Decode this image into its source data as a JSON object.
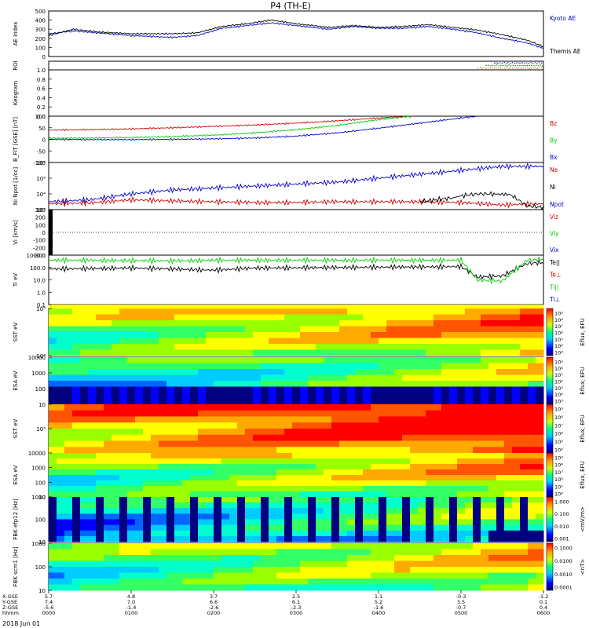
{
  "title": "P4 (TH-E)",
  "date_label": "2018 Jun 01",
  "colors": {
    "black": "#000000",
    "blue": "#0000cc",
    "red": "#cc0000",
    "green": "#00cc00",
    "spec_low": "#000080",
    "spec_high": "#ff0000"
  },
  "chart_data": [
    {
      "type": "line",
      "panel": "ae",
      "ylabel": "AE Index",
      "ylim": [
        0,
        500
      ],
      "yticks": [
        "0",
        "100",
        "200",
        "300",
        "400",
        "500"
      ],
      "series": [
        {
          "name": "Kyoto AE",
          "color": "#0000cc",
          "x": [
            0,
            0.3,
            0.6,
            1.0,
            1.5,
            1.8,
            2.1,
            2.4,
            2.7,
            3.0,
            3.4,
            3.7,
            4.0,
            4.3,
            4.6,
            4.9,
            5.2,
            5.5,
            5.8,
            6.0
          ],
          "values": [
            250,
            280,
            260,
            230,
            210,
            230,
            310,
            340,
            370,
            340,
            300,
            330,
            310,
            310,
            330,
            300,
            260,
            200,
            150,
            90
          ]
        },
        {
          "name": "Themis AE",
          "color": "#000000",
          "x": [
            0,
            0.3,
            0.6,
            1.0,
            1.5,
            1.8,
            2.1,
            2.4,
            2.7,
            3.0,
            3.4,
            3.7,
            4.0,
            4.3,
            4.6,
            4.9,
            5.2,
            5.5,
            5.8,
            6.0
          ],
          "values": [
            230,
            300,
            270,
            250,
            250,
            260,
            330,
            360,
            400,
            360,
            320,
            340,
            320,
            330,
            350,
            320,
            290,
            240,
            180,
            110
          ]
        }
      ]
    },
    {
      "type": "line",
      "panel": "roi",
      "ylabel": "ROI",
      "series": [
        {
          "name": "",
          "color": "#cc6600",
          "x": [
            5.2,
            6.0
          ],
          "values": [
            1,
            1
          ]
        },
        {
          "name": "",
          "color": "#006600",
          "x": [
            5.3,
            6.0
          ],
          "values": [
            1,
            1
          ]
        },
        {
          "name": "",
          "color": "#0000cc",
          "x": [
            5.4,
            6.0
          ],
          "values": [
            1,
            1
          ]
        }
      ]
    },
    {
      "type": "line",
      "panel": "keogram",
      "ylabel": "Keogram",
      "ylim": [
        0,
        1
      ],
      "yticks": [
        "0.0",
        "0.2",
        "0.4",
        "0.6",
        "0.8",
        "1.0"
      ],
      "series": []
    },
    {
      "type": "line",
      "panel": "bfield",
      "ylabel": "B_FIT [GSE] [nT]",
      "ylim": [
        -100,
        100
      ],
      "yticks": [
        "-100",
        "-50",
        "0",
        "50",
        "100"
      ],
      "series": [
        {
          "name": "Bz",
          "color": "#cc0000",
          "x": [
            0,
            0.5,
            1.0,
            1.5,
            2.0,
            2.5,
            3.0,
            3.5,
            4.0,
            4.4
          ],
          "values": [
            40,
            42,
            45,
            50,
            56,
            62,
            70,
            80,
            92,
            100
          ]
        },
        {
          "name": "By",
          "color": "#00cc00",
          "x": [
            0,
            0.5,
            1.0,
            1.5,
            2.0,
            2.5,
            3.0,
            3.5,
            4.0,
            4.4
          ],
          "values": [
            5,
            6,
            8,
            12,
            18,
            28,
            42,
            60,
            85,
            100
          ]
        },
        {
          "name": "Bx",
          "color": "#0000cc",
          "x": [
            0,
            0.5,
            1.0,
            1.5,
            2.0,
            2.5,
            3.0,
            3.5,
            4.0,
            4.5,
            5.0,
            5.2
          ],
          "values": [
            0,
            -1,
            -1,
            0,
            2,
            6,
            14,
            28,
            48,
            70,
            92,
            100
          ]
        }
      ]
    },
    {
      "type": "line",
      "panel": "density",
      "ylabel": "Ni Npot [1/cc]",
      "yscale": "log",
      "yticks": [
        "10²",
        "10⁴",
        "10⁶",
        "10⁸"
      ],
      "series": [
        {
          "name": "Ne",
          "color": "#cc0000",
          "x": [
            0,
            0.5,
            1.0,
            1.5,
            2.0,
            2.5,
            3.0,
            3.5,
            4.0,
            4.5,
            5.0,
            5.5,
            6.0
          ],
          "values": [
            -1.5,
            -1.3,
            -0.5,
            -0.8,
            -1,
            -1.2,
            -1.2,
            -1,
            -1,
            -1,
            -1.2,
            -1.8,
            -1.5
          ]
        },
        {
          "name": "Ni",
          "color": "#000000",
          "x": [
            4.5,
            4.7,
            4.9,
            5.0,
            5.2,
            5.4,
            5.6,
            5.8,
            6.0
          ],
          "values": [
            -1,
            -0.5,
            0,
            0.5,
            1,
            1,
            0.8,
            -2,
            -2.5
          ]
        },
        {
          "name": "Npot",
          "color": "#0000cc",
          "x": [
            0,
            0.5,
            1.0,
            1.5,
            2.0,
            2.5,
            3.0,
            3.5,
            4.0,
            4.5,
            5.0,
            5.5,
            6.0
          ],
          "values": [
            -1,
            -0.5,
            1,
            2,
            2.5,
            3,
            3.5,
            4,
            5,
            6,
            7,
            8,
            8
          ]
        }
      ]
    },
    {
      "type": "line",
      "panel": "velocity",
      "ylabel": "Vi [km/s]",
      "ylim": [
        -300,
        300
      ],
      "yticks": [
        "-300",
        "-200",
        "-100",
        "0",
        "100",
        "200",
        "300"
      ],
      "series": [
        {
          "name": "Viz",
          "color": "#cc0000",
          "x": [],
          "values": []
        },
        {
          "name": "Viy",
          "color": "#00cc00",
          "x": [],
          "values": []
        },
        {
          "name": "Vix",
          "color": "#0000cc",
          "x": [],
          "values": []
        }
      ]
    },
    {
      "type": "line",
      "panel": "temperature",
      "ylabel": "Ti eV",
      "yscale": "log",
      "yticks": [
        "0.1",
        "1.0",
        "10.0",
        "100.0",
        "1000.0"
      ],
      "series": [
        {
          "name": "Te||",
          "color": "#000000",
          "x": [
            0,
            0.5,
            1.0,
            1.5,
            2.0,
            2.5,
            3.0,
            3.5,
            4.0,
            4.5,
            5.0,
            5.2,
            5.5,
            5.8,
            6.0
          ],
          "values": [
            200,
            220,
            250,
            200,
            150,
            250,
            260,
            280,
            300,
            320,
            350,
            30,
            40,
            700,
            900
          ]
        },
        {
          "name": "Te⊥",
          "color": "#cc0000",
          "x": [],
          "values": []
        },
        {
          "name": "Ti||",
          "color": "#00cc00",
          "x": [
            0,
            0.5,
            1.0,
            1.5,
            2.0,
            2.5,
            3.0,
            3.5,
            4.0,
            4.5,
            5.0,
            5.2,
            5.5,
            5.8,
            6.0
          ],
          "values": [
            1500,
            1500,
            1400,
            1300,
            1500,
            1500,
            1500,
            1500,
            1500,
            1500,
            1500,
            15,
            12,
            1500,
            2000
          ]
        },
        {
          "name": "Ti⊥",
          "color": "#0000cc",
          "x": [],
          "values": []
        }
      ]
    },
    {
      "type": "heatmap",
      "panel": "sst1",
      "ylabel": "SST eV",
      "yticks": [
        "10⁴",
        "10⁵"
      ],
      "cbar_label": "Eflux, EFU",
      "cbar_ticks": [
        "10⁹",
        "10⁸",
        "10⁷",
        "10⁶",
        "10⁵",
        "10⁴",
        "10³"
      ]
    },
    {
      "type": "heatmap",
      "panel": "esa1",
      "ylabel": "ESA eV",
      "yticks": [
        "10",
        "100",
        "1000",
        "10000"
      ],
      "cbar_label": "Eflux, EFU",
      "cbar_ticks": [
        "10⁹",
        "10⁸",
        "10⁷",
        "10⁶",
        "10⁵",
        "10⁴",
        "10³"
      ]
    },
    {
      "type": "heatmap",
      "panel": "sst2",
      "ylabel": "SST eV",
      "yticks": [
        "10⁵"
      ],
      "cbar_label": "Eflux, EFU",
      "cbar_ticks": [
        "10⁹",
        "10⁸",
        "10⁷",
        "10⁶",
        "10⁵",
        "10⁴"
      ]
    },
    {
      "type": "heatmap",
      "panel": "esa2",
      "ylabel": "ESA eV",
      "yticks": [
        "10",
        "100",
        "1000",
        "10000"
      ],
      "cbar_label": "Eflux, EFU",
      "cbar_ticks": [
        "10⁹",
        "10⁸",
        "10⁷",
        "10⁶",
        "10⁵",
        "10⁴"
      ]
    },
    {
      "type": "heatmap",
      "panel": "fbk1",
      "ylabel": "FBK efp12 [Hz]",
      "yticks": [
        "10",
        "100",
        "1000"
      ],
      "cbar_label": "<mV/m>",
      "cbar_ticks": [
        "1.000",
        "0.100",
        "0.010",
        "0.001"
      ]
    },
    {
      "type": "heatmap",
      "panel": "fbk2",
      "ylabel": "FBK scm1 [Hz]",
      "yticks": [
        "10",
        "100",
        "1000"
      ],
      "cbar_label": "<nT>",
      "cbar_ticks": [
        "0.1000",
        "0.0100",
        "0.0010",
        "0.0001"
      ]
    }
  ],
  "xaxis": {
    "row_labels": [
      "X-GSE",
      "Y-GSE",
      "Z-GSE",
      "hhmm"
    ],
    "ticks": [
      {
        "x": "5.7",
        "y": "7.4",
        "z": "-5.6",
        "time": "0000"
      },
      {
        "x": "4.8",
        "y": "7.0",
        "z": "-1.4",
        "time": "0100"
      },
      {
        "x": "3.7",
        "y": "6.6",
        "z": "-2.6",
        "time": "0200"
      },
      {
        "x": "2.5",
        "y": "6.1",
        "z": "-2.3",
        "time": "0300"
      },
      {
        "x": "1.1",
        "y": "5.2",
        "z": "-1.6",
        "time": "0400"
      },
      {
        "x": "-0.3",
        "y": "3.5",
        "z": "-0.7",
        "time": "0500"
      },
      {
        "x": "-1.2",
        "y": "0.1",
        "z": "0.4",
        "time": "0600"
      }
    ]
  }
}
